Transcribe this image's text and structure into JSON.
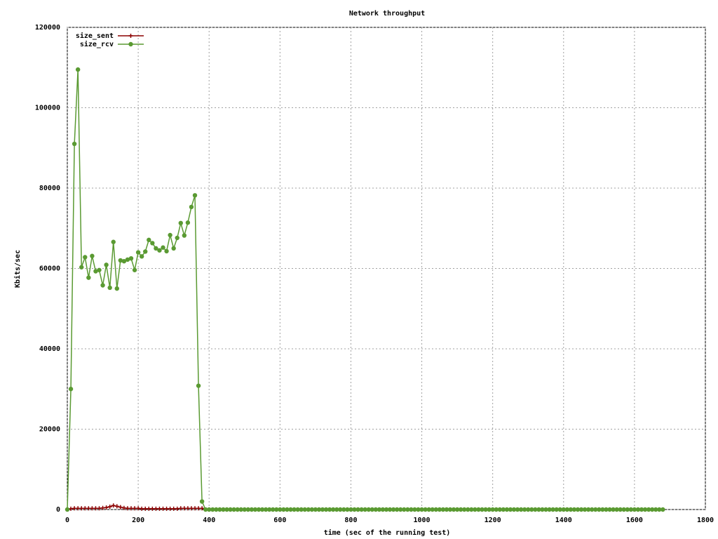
{
  "chart_data": {
    "type": "line",
    "title": "Network throughput",
    "x_label": "time (sec of the running test)",
    "y_label": "Kbits/sec",
    "xlim": [
      0,
      1800
    ],
    "xticks": [
      0,
      200,
      400,
      600,
      800,
      1000,
      1200,
      1400,
      1600,
      1800
    ],
    "ylim": [
      0,
      120000
    ],
    "yticks": [
      0,
      20000,
      40000,
      60000,
      80000,
      100000,
      120000
    ],
    "grid": true,
    "legend": "top-left",
    "x": [
      0,
      10,
      20,
      30,
      40,
      50,
      60,
      70,
      80,
      90,
      100,
      110,
      120,
      130,
      140,
      150,
      160,
      170,
      180,
      190,
      200,
      210,
      220,
      230,
      240,
      250,
      260,
      270,
      280,
      290,
      300,
      310,
      320,
      330,
      340,
      350,
      360,
      370,
      380,
      390,
      400,
      410,
      420,
      430,
      440,
      450,
      460,
      470,
      480,
      490,
      500,
      510,
      520,
      530,
      540,
      550,
      560,
      570,
      580,
      590,
      600,
      610,
      620,
      630,
      640,
      650,
      660,
      670,
      680,
      690,
      700,
      710,
      720,
      730,
      740,
      750,
      760,
      770,
      780,
      790,
      800,
      810,
      820,
      830,
      840,
      850,
      860,
      870,
      880,
      890,
      900,
      910,
      920,
      930,
      940,
      950,
      960,
      970,
      980,
      990,
      1000,
      1010,
      1020,
      1030,
      1040,
      1050,
      1060,
      1070,
      1080,
      1090,
      1100,
      1110,
      1120,
      1130,
      1140,
      1150,
      1160,
      1170,
      1180,
      1190,
      1200,
      1210,
      1220,
      1230,
      1240,
      1250,
      1260,
      1270,
      1280,
      1290,
      1300,
      1310,
      1320,
      1330,
      1340,
      1350,
      1360,
      1370,
      1380,
      1390,
      1400,
      1410,
      1420,
      1430,
      1440,
      1450,
      1460,
      1470,
      1480,
      1490,
      1500,
      1510,
      1520,
      1530,
      1540,
      1550,
      1560,
      1570,
      1580,
      1590,
      1600,
      1610,
      1620,
      1630,
      1640,
      1650,
      1660,
      1670,
      1680
    ],
    "series": [
      {
        "name": "size_sent",
        "color": "#8b0000",
        "marker": "plus",
        "values": [
          0,
          200,
          300,
          300,
          300,
          300,
          300,
          300,
          300,
          300,
          400,
          500,
          700,
          1000,
          800,
          600,
          400,
          300,
          300,
          300,
          300,
          200,
          200,
          200,
          200,
          200,
          200,
          200,
          200,
          200,
          200,
          200,
          300,
          300,
          300,
          300,
          300,
          300,
          300,
          0,
          0,
          0,
          0,
          0,
          0,
          0,
          0,
          0,
          0,
          0,
          0,
          0,
          0,
          0,
          0,
          0,
          0,
          0,
          0,
          0,
          0,
          0,
          0,
          0,
          0,
          0,
          0,
          0,
          0,
          0,
          0,
          0,
          0,
          0,
          0,
          0,
          0,
          0,
          0,
          0,
          0,
          0,
          0,
          0,
          0,
          0,
          0,
          0,
          0,
          0,
          0,
          0,
          0,
          0,
          0,
          0,
          0,
          0,
          0,
          0,
          0,
          0,
          0,
          0,
          0,
          0,
          0,
          0,
          0,
          0,
          0,
          0,
          0,
          0,
          0,
          0,
          0,
          0,
          0,
          0,
          0,
          0,
          0,
          0,
          0,
          0,
          0,
          0,
          0,
          0,
          0,
          0,
          0,
          0,
          0,
          0,
          0,
          0,
          0,
          0,
          0,
          0,
          0,
          0,
          0,
          0,
          0,
          0,
          0,
          0,
          0,
          0,
          0,
          0,
          0,
          0,
          0,
          0,
          0,
          0,
          0,
          0,
          0,
          0,
          0,
          0,
          0,
          0,
          0
        ]
      },
      {
        "name": "size_rcv",
        "color": "#5a9a32",
        "marker": "circle",
        "values": [
          0,
          30000,
          91000,
          109500,
          60300,
          62800,
          57700,
          63100,
          59300,
          59600,
          55800,
          60900,
          55200,
          66600,
          55000,
          62000,
          61800,
          62200,
          62500,
          59600,
          64000,
          63000,
          64200,
          67100,
          66300,
          65000,
          64500,
          65200,
          64300,
          68300,
          65000,
          67600,
          71300,
          68200,
          71400,
          75300,
          78200,
          30800,
          2000,
          0,
          0,
          0,
          0,
          0,
          0,
          0,
          0,
          0,
          0,
          0,
          0,
          0,
          0,
          0,
          0,
          0,
          0,
          0,
          0,
          0,
          0,
          0,
          0,
          0,
          0,
          0,
          0,
          0,
          0,
          0,
          0,
          0,
          0,
          0,
          0,
          0,
          0,
          0,
          0,
          0,
          0,
          0,
          0,
          0,
          0,
          0,
          0,
          0,
          0,
          0,
          0,
          0,
          0,
          0,
          0,
          0,
          0,
          0,
          0,
          0,
          0,
          0,
          0,
          0,
          0,
          0,
          0,
          0,
          0,
          0,
          0,
          0,
          0,
          0,
          0,
          0,
          0,
          0,
          0,
          0,
          0,
          0,
          0,
          0,
          0,
          0,
          0,
          0,
          0,
          0,
          0,
          0,
          0,
          0,
          0,
          0,
          0,
          0,
          0,
          0,
          0,
          0,
          0,
          0,
          0,
          0,
          0,
          0,
          0,
          0,
          0,
          0,
          0,
          0,
          0,
          0,
          0,
          0,
          0,
          0,
          0,
          0,
          0,
          0,
          0,
          0,
          0,
          0,
          0
        ]
      }
    ]
  }
}
